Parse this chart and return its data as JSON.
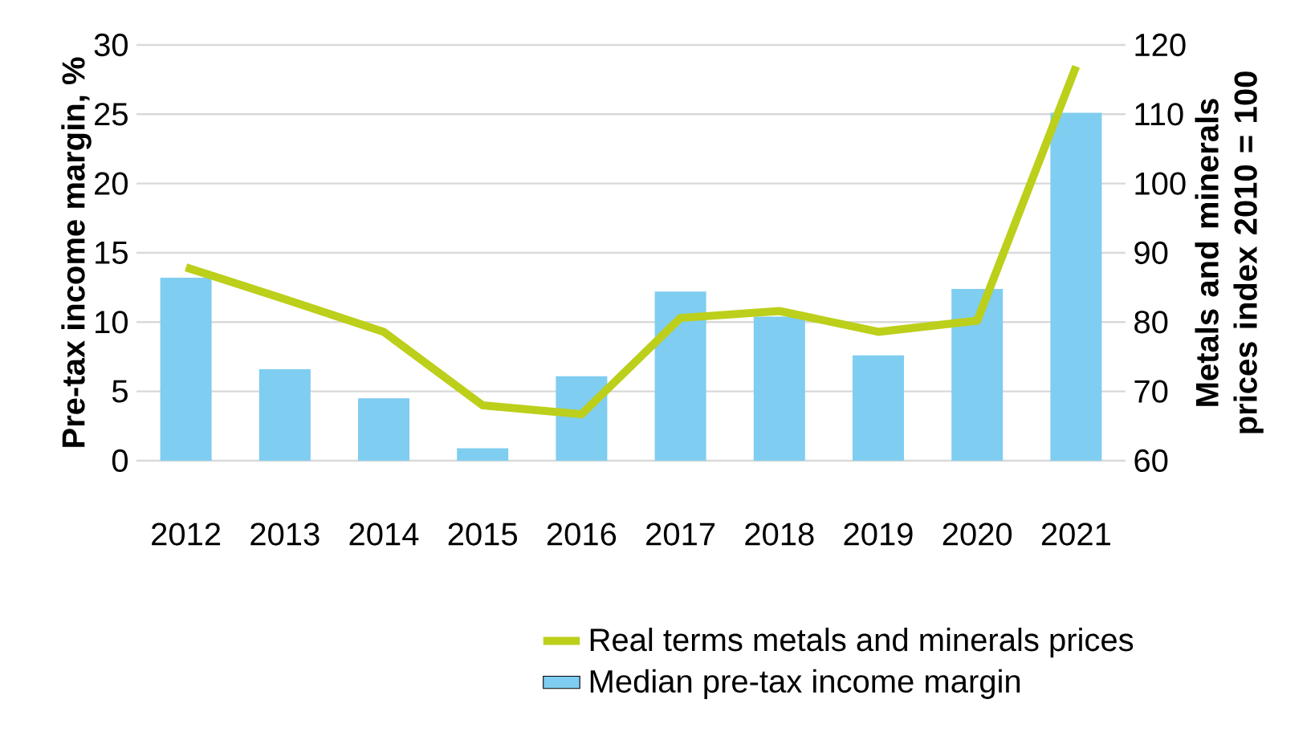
{
  "chart_data": {
    "type": "bar",
    "categories": [
      "2012",
      "2013",
      "2014",
      "2015",
      "2016",
      "2017",
      "2018",
      "2019",
      "2020",
      "2021"
    ],
    "series": [
      {
        "name": "Real terms metals and minerals prices",
        "type": "line",
        "axis": "y2",
        "color": "#bccf1a",
        "values": [
          87.9,
          83.3,
          78.6,
          68.0,
          66.7,
          80.6,
          81.6,
          78.6,
          80.2,
          116.9
        ]
      },
      {
        "name": "Median pre-tax income margin",
        "color": "#7fcdf0",
        "values": [
          13.2,
          6.6,
          4.5,
          0.9,
          6.1,
          12.2,
          10.4,
          7.6,
          12.4,
          25.1
        ]
      }
    ],
    "ylabel": "Pre-tax income margin, %",
    "y2label": "Metals and minerals prices index 2010 = 100",
    "ylim": [
      0,
      30
    ],
    "yticks": [
      0,
      5,
      10,
      15,
      20,
      25,
      30
    ],
    "y2lim": [
      60,
      120
    ],
    "y2ticks": [
      60,
      70,
      80,
      90,
      100,
      110,
      120
    ],
    "grid": "y",
    "legend": "bottom right"
  }
}
